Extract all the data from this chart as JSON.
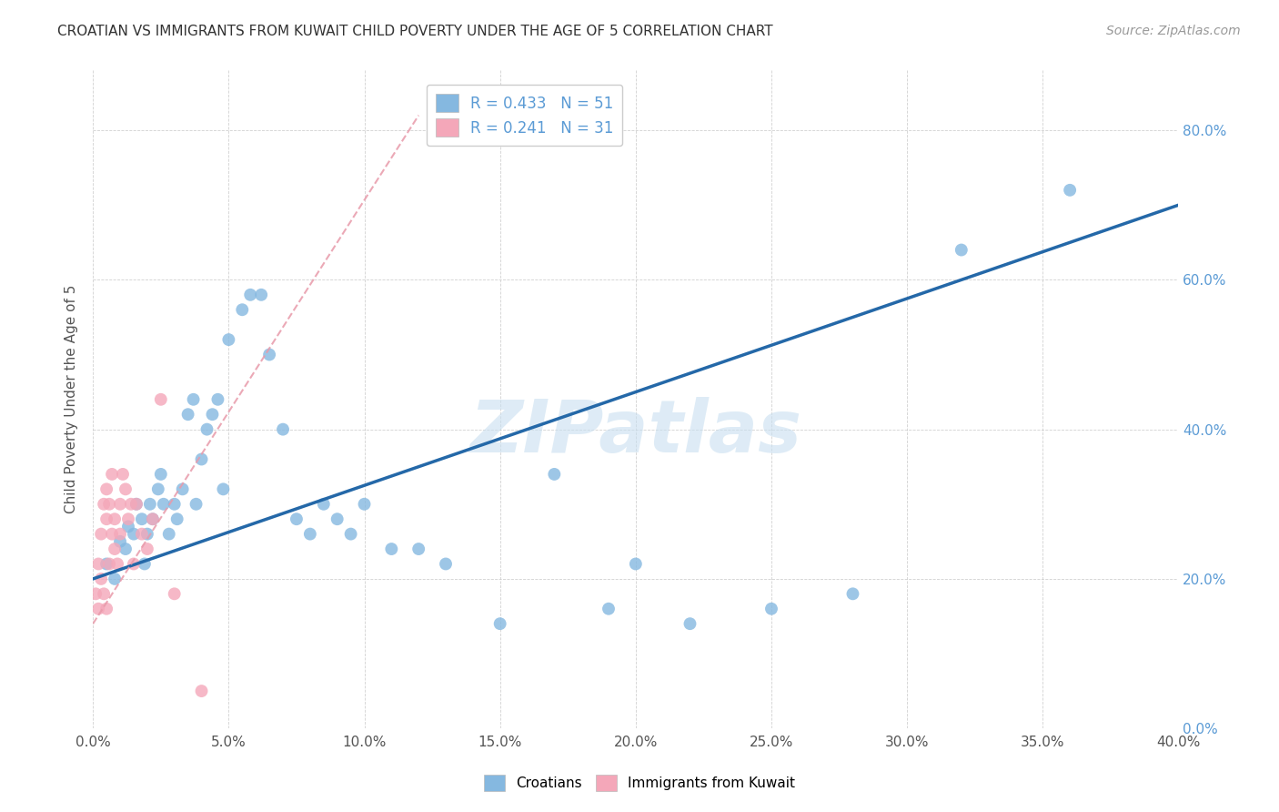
{
  "title": "CROATIAN VS IMMIGRANTS FROM KUWAIT CHILD POVERTY UNDER THE AGE OF 5 CORRELATION CHART",
  "source": "Source: ZipAtlas.com",
  "ylabel_text": "Child Poverty Under the Age of 5",
  "xlim": [
    0.0,
    0.4
  ],
  "ylim": [
    0.0,
    0.88
  ],
  "xtick_vals": [
    0.0,
    0.05,
    0.1,
    0.15,
    0.2,
    0.25,
    0.3,
    0.35,
    0.4
  ],
  "ytick_vals": [
    0.0,
    0.2,
    0.4,
    0.6,
    0.8
  ],
  "background_color": "#ffffff",
  "watermark": "ZIPatlas",
  "blue_color": "#85b8e0",
  "pink_color": "#f4a7b9",
  "blue_line_color": "#2468a8",
  "pink_line_color": "#e89aaa",
  "legend_blue_R": "0.433",
  "legend_blue_N": "51",
  "legend_pink_R": "0.241",
  "legend_pink_N": "31",
  "blue_x": [
    0.005,
    0.008,
    0.01,
    0.012,
    0.013,
    0.015,
    0.016,
    0.018,
    0.019,
    0.02,
    0.021,
    0.022,
    0.024,
    0.025,
    0.026,
    0.028,
    0.03,
    0.031,
    0.033,
    0.035,
    0.037,
    0.038,
    0.04,
    0.042,
    0.044,
    0.046,
    0.048,
    0.05,
    0.055,
    0.058,
    0.062,
    0.065,
    0.07,
    0.075,
    0.08,
    0.085,
    0.09,
    0.095,
    0.1,
    0.11,
    0.12,
    0.13,
    0.15,
    0.17,
    0.19,
    0.2,
    0.22,
    0.25,
    0.28,
    0.32,
    0.36
  ],
  "blue_y": [
    0.22,
    0.2,
    0.25,
    0.24,
    0.27,
    0.26,
    0.3,
    0.28,
    0.22,
    0.26,
    0.3,
    0.28,
    0.32,
    0.34,
    0.3,
    0.26,
    0.3,
    0.28,
    0.32,
    0.42,
    0.44,
    0.3,
    0.36,
    0.4,
    0.42,
    0.44,
    0.32,
    0.52,
    0.56,
    0.58,
    0.58,
    0.5,
    0.4,
    0.28,
    0.26,
    0.3,
    0.28,
    0.26,
    0.3,
    0.24,
    0.24,
    0.22,
    0.14,
    0.34,
    0.16,
    0.22,
    0.14,
    0.16,
    0.18,
    0.64,
    0.72
  ],
  "pink_x": [
    0.001,
    0.002,
    0.002,
    0.003,
    0.003,
    0.004,
    0.004,
    0.005,
    0.005,
    0.005,
    0.006,
    0.006,
    0.007,
    0.007,
    0.008,
    0.008,
    0.009,
    0.01,
    0.01,
    0.011,
    0.012,
    0.013,
    0.014,
    0.015,
    0.016,
    0.018,
    0.02,
    0.022,
    0.025,
    0.03,
    0.04
  ],
  "pink_y": [
    0.18,
    0.16,
    0.22,
    0.2,
    0.26,
    0.18,
    0.3,
    0.16,
    0.28,
    0.32,
    0.22,
    0.3,
    0.26,
    0.34,
    0.24,
    0.28,
    0.22,
    0.26,
    0.3,
    0.34,
    0.32,
    0.28,
    0.3,
    0.22,
    0.3,
    0.26,
    0.24,
    0.28,
    0.44,
    0.18,
    0.05
  ]
}
